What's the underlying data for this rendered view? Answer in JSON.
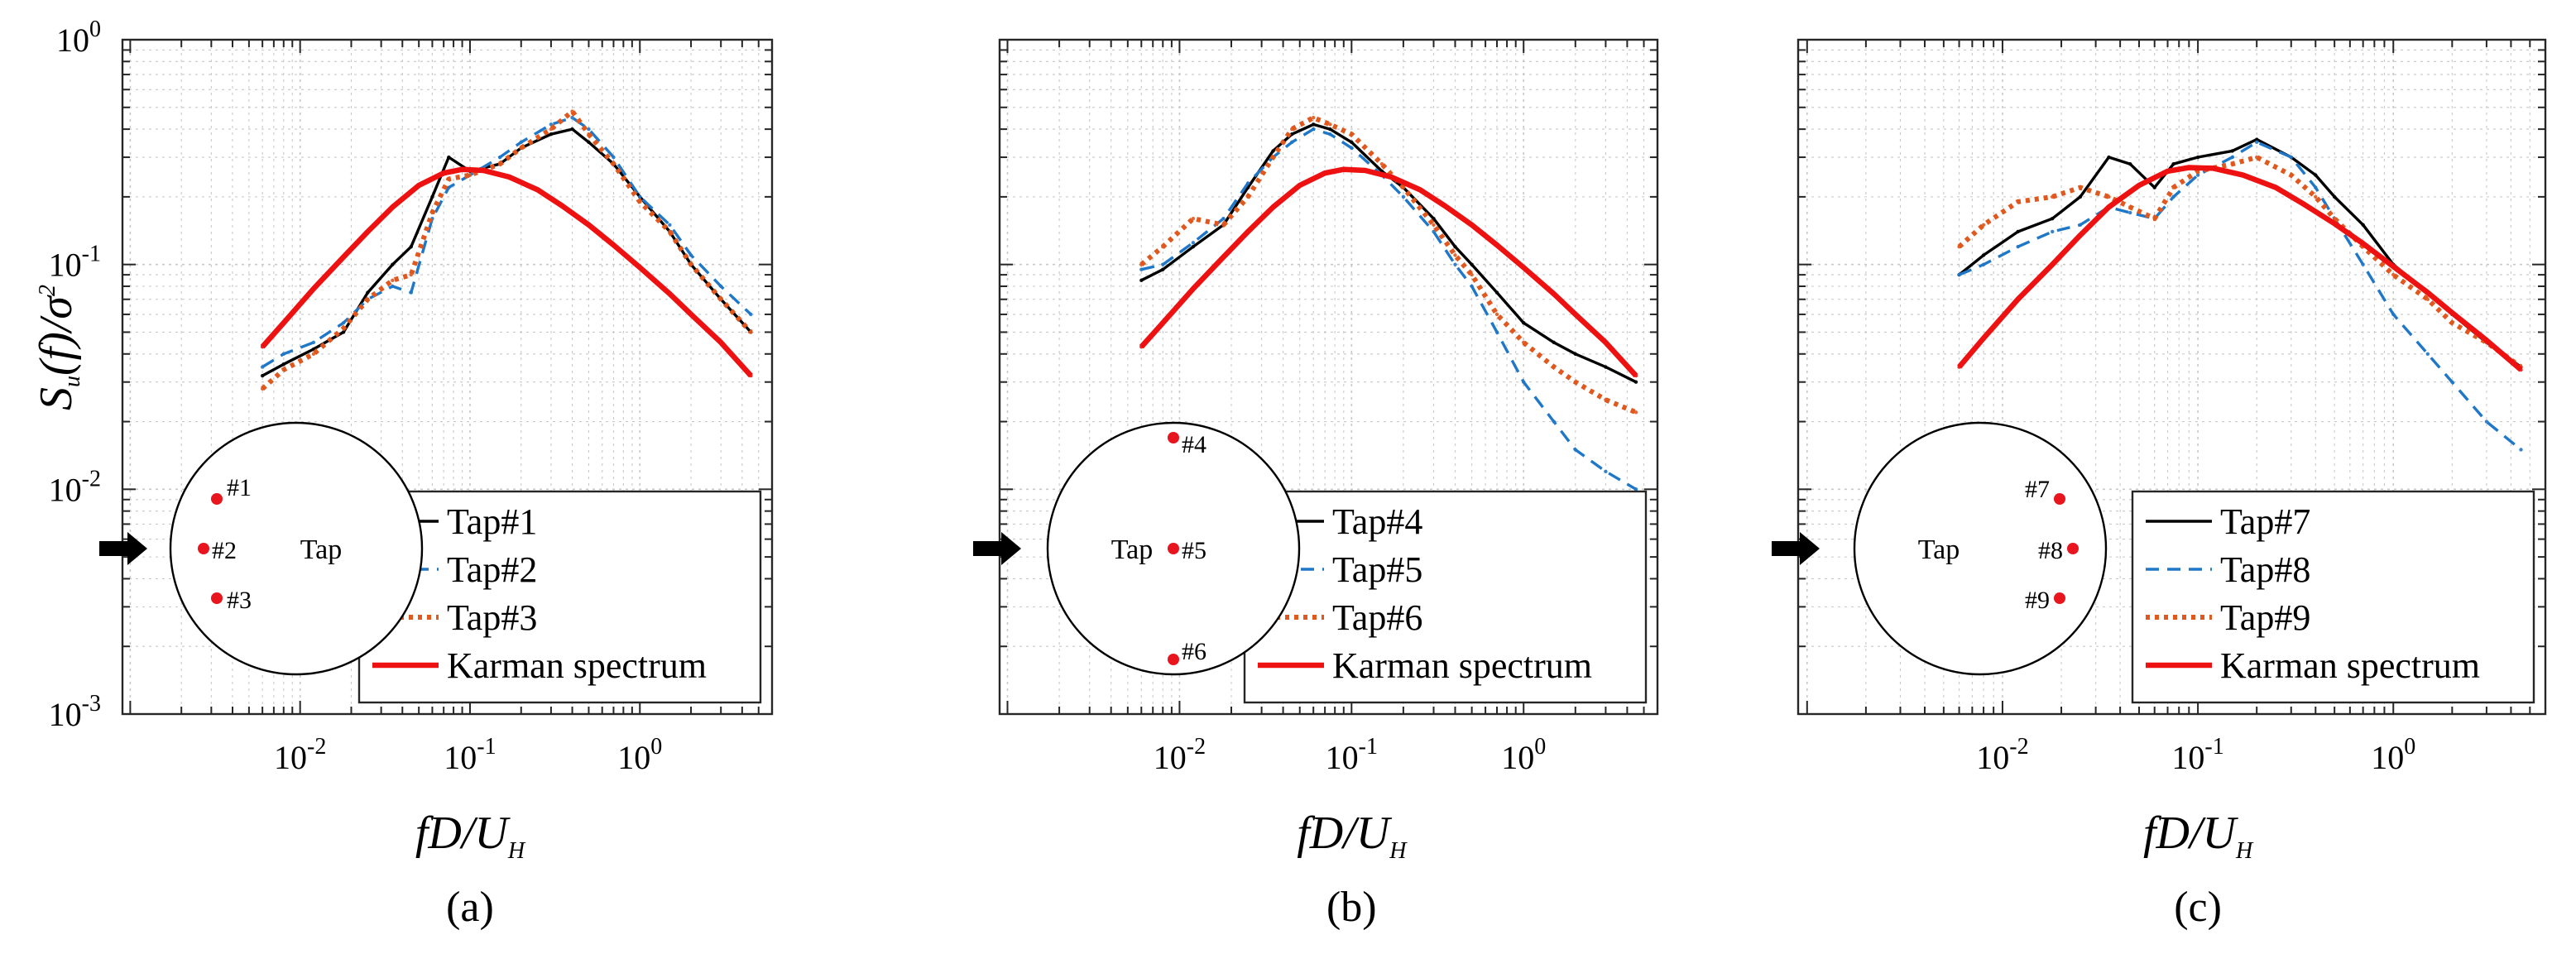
{
  "figure": {
    "y_label": {
      "main": "S",
      "sub": "u",
      "rest": "(f)/σ",
      "sup": "2"
    },
    "x_label": {
      "main": "fD/U",
      "sub": "H"
    },
    "y_ticks": [
      {
        "value": 0.001,
        "base": "10",
        "exp": "-3"
      },
      {
        "value": 0.01,
        "base": "10",
        "exp": "-2"
      },
      {
        "value": 0.1,
        "base": "10",
        "exp": "-1"
      },
      {
        "value": 1,
        "base": "10",
        "exp": "0"
      }
    ],
    "x_ticks": [
      {
        "value": 0.01,
        "base": "10",
        "exp": "-2"
      },
      {
        "value": 0.1,
        "base": "10",
        "exp": "-1"
      },
      {
        "value": 1,
        "base": "10",
        "exp": "0"
      }
    ],
    "inset_word": "Tap",
    "colors": {
      "tap_a": "#000000",
      "tap_b": "#1f77c8",
      "tap_c": "#e0581d",
      "karman": "#ee1111",
      "marker": "#e8141e"
    }
  },
  "chart_data": [
    {
      "type": "line",
      "caption": "(a)",
      "x_scale": "log",
      "y_scale": "log",
      "xlim": [
        0.0009,
        6
      ],
      "ylim": [
        0.001,
        1
      ],
      "xlabel": "fD/U_H",
      "ylabel": "Su(f)/σ^2",
      "grid": true,
      "legend_position": "bottom-right",
      "series": [
        {
          "name": "Tap#1",
          "style": "solid",
          "x": [
            0.006,
            0.008,
            0.012,
            0.018,
            0.025,
            0.035,
            0.045,
            0.06,
            0.075,
            0.1,
            0.15,
            0.2,
            0.3,
            0.4,
            0.5,
            0.7,
            1.0,
            1.5,
            2.0,
            3.0,
            4.5
          ],
          "y": [
            0.032,
            0.036,
            0.042,
            0.05,
            0.075,
            0.1,
            0.12,
            0.2,
            0.3,
            0.26,
            0.28,
            0.33,
            0.38,
            0.4,
            0.35,
            0.28,
            0.2,
            0.14,
            0.1,
            0.07,
            0.05
          ]
        },
        {
          "name": "Tap#2",
          "style": "dashed",
          "x": [
            0.006,
            0.008,
            0.012,
            0.018,
            0.025,
            0.035,
            0.045,
            0.06,
            0.075,
            0.1,
            0.15,
            0.2,
            0.3,
            0.4,
            0.5,
            0.7,
            1.0,
            1.5,
            2.0,
            3.0,
            4.5
          ],
          "y": [
            0.035,
            0.04,
            0.045,
            0.055,
            0.07,
            0.08,
            0.075,
            0.16,
            0.22,
            0.25,
            0.3,
            0.35,
            0.42,
            0.45,
            0.4,
            0.3,
            0.2,
            0.15,
            0.11,
            0.08,
            0.06
          ]
        },
        {
          "name": "Tap#3",
          "style": "dotted",
          "x": [
            0.006,
            0.008,
            0.012,
            0.018,
            0.025,
            0.035,
            0.045,
            0.06,
            0.075,
            0.1,
            0.15,
            0.2,
            0.3,
            0.4,
            0.5,
            0.7,
            1.0,
            1.5,
            2.0,
            3.0,
            4.5
          ],
          "y": [
            0.028,
            0.034,
            0.04,
            0.052,
            0.07,
            0.085,
            0.09,
            0.17,
            0.24,
            0.25,
            0.28,
            0.33,
            0.4,
            0.48,
            0.38,
            0.28,
            0.19,
            0.14,
            0.1,
            0.07,
            0.05
          ]
        },
        {
          "name": "Karman spectrum",
          "style": "thick",
          "x": [
            0.006,
            0.008,
            0.012,
            0.018,
            0.025,
            0.035,
            0.05,
            0.07,
            0.09,
            0.12,
            0.17,
            0.25,
            0.35,
            0.5,
            0.7,
            1.0,
            1.5,
            2.0,
            3.0,
            4.5
          ],
          "y": [
            0.043,
            0.055,
            0.078,
            0.108,
            0.14,
            0.18,
            0.225,
            0.255,
            0.265,
            0.262,
            0.245,
            0.215,
            0.182,
            0.15,
            0.122,
            0.097,
            0.074,
            0.06,
            0.045,
            0.032
          ]
        }
      ],
      "legend": [
        "Tap#1",
        "Tap#2",
        "Tap#3",
        "Karman spectrum"
      ],
      "inset": {
        "taps": [
          {
            "label": "#1",
            "pos": "left-upper"
          },
          {
            "label": "#2",
            "pos": "left-mid"
          },
          {
            "label": "#3",
            "pos": "left-lower"
          }
        ]
      }
    },
    {
      "type": "line",
      "caption": "(b)",
      "x_scale": "log",
      "y_scale": "log",
      "xlim": [
        0.0009,
        6
      ],
      "ylim": [
        0.001,
        1
      ],
      "xlabel": "fD/U_H",
      "ylabel": "Su(f)/σ^2",
      "grid": true,
      "legend_position": "bottom-right",
      "series": [
        {
          "name": "Tap#4",
          "style": "solid",
          "x": [
            0.006,
            0.008,
            0.012,
            0.018,
            0.025,
            0.035,
            0.045,
            0.06,
            0.075,
            0.1,
            0.15,
            0.2,
            0.3,
            0.4,
            0.5,
            0.7,
            1.0,
            1.5,
            2.0,
            3.0,
            4.5
          ],
          "y": [
            0.085,
            0.095,
            0.12,
            0.15,
            0.22,
            0.32,
            0.38,
            0.42,
            0.4,
            0.35,
            0.26,
            0.22,
            0.16,
            0.12,
            0.1,
            0.075,
            0.055,
            0.045,
            0.04,
            0.035,
            0.03
          ]
        },
        {
          "name": "Tap#5",
          "style": "dashed",
          "x": [
            0.006,
            0.008,
            0.012,
            0.018,
            0.025,
            0.035,
            0.045,
            0.06,
            0.075,
            0.1,
            0.15,
            0.2,
            0.3,
            0.4,
            0.5,
            0.7,
            1.0,
            1.5,
            2.0,
            3.0,
            4.5
          ],
          "y": [
            0.095,
            0.1,
            0.125,
            0.16,
            0.23,
            0.3,
            0.35,
            0.4,
            0.38,
            0.33,
            0.25,
            0.2,
            0.14,
            0.1,
            0.08,
            0.05,
            0.03,
            0.02,
            0.015,
            0.012,
            0.01
          ]
        },
        {
          "name": "Tap#6",
          "style": "dotted",
          "x": [
            0.006,
            0.008,
            0.012,
            0.018,
            0.025,
            0.035,
            0.045,
            0.06,
            0.075,
            0.1,
            0.15,
            0.2,
            0.3,
            0.4,
            0.5,
            0.7,
            1.0,
            1.5,
            2.0,
            3.0,
            4.5
          ],
          "y": [
            0.1,
            0.12,
            0.16,
            0.15,
            0.2,
            0.3,
            0.4,
            0.45,
            0.42,
            0.38,
            0.28,
            0.22,
            0.15,
            0.11,
            0.09,
            0.06,
            0.045,
            0.035,
            0.03,
            0.025,
            0.022
          ]
        },
        {
          "name": "Karman spectrum",
          "style": "thick",
          "x": [
            0.006,
            0.008,
            0.012,
            0.018,
            0.025,
            0.035,
            0.05,
            0.07,
            0.09,
            0.12,
            0.17,
            0.25,
            0.35,
            0.5,
            0.7,
            1.0,
            1.5,
            2.0,
            3.0,
            4.5
          ],
          "y": [
            0.043,
            0.055,
            0.078,
            0.108,
            0.14,
            0.18,
            0.225,
            0.255,
            0.265,
            0.262,
            0.245,
            0.215,
            0.182,
            0.15,
            0.122,
            0.097,
            0.074,
            0.06,
            0.045,
            0.032
          ]
        }
      ],
      "legend": [
        "Tap#4",
        "Tap#5",
        "Tap#6",
        "Karman spectrum"
      ],
      "inset": {
        "taps": [
          {
            "label": "#4",
            "pos": "top"
          },
          {
            "label": "#5",
            "pos": "center"
          },
          {
            "label": "#6",
            "pos": "bottom"
          }
        ]
      }
    },
    {
      "type": "line",
      "caption": "(c)",
      "x_scale": "log",
      "y_scale": "log",
      "xlim": [
        0.0009,
        6
      ],
      "ylim": [
        0.001,
        1
      ],
      "xlabel": "fD/U_H",
      "ylabel": "Su(f)/σ^2",
      "grid": true,
      "legend_position": "bottom-right",
      "series": [
        {
          "name": "Tap#7",
          "style": "solid",
          "x": [
            0.006,
            0.008,
            0.012,
            0.018,
            0.025,
            0.035,
            0.045,
            0.06,
            0.075,
            0.1,
            0.15,
            0.2,
            0.3,
            0.4,
            0.5,
            0.7,
            1.0,
            1.5,
            2.0,
            3.0,
            4.5
          ],
          "y": [
            0.09,
            0.11,
            0.14,
            0.16,
            0.2,
            0.3,
            0.28,
            0.22,
            0.28,
            0.3,
            0.32,
            0.36,
            0.3,
            0.25,
            0.2,
            0.15,
            0.1,
            0.075,
            0.06,
            0.045,
            0.035
          ]
        },
        {
          "name": "Tap#8",
          "style": "dashed",
          "x": [
            0.006,
            0.008,
            0.012,
            0.018,
            0.025,
            0.035,
            0.045,
            0.06,
            0.075,
            0.1,
            0.15,
            0.2,
            0.3,
            0.4,
            0.5,
            0.7,
            1.0,
            1.5,
            2.0,
            3.0,
            4.5
          ],
          "y": [
            0.09,
            0.1,
            0.12,
            0.14,
            0.15,
            0.18,
            0.17,
            0.16,
            0.2,
            0.25,
            0.3,
            0.35,
            0.3,
            0.22,
            0.16,
            0.1,
            0.06,
            0.04,
            0.03,
            0.02,
            0.015
          ]
        },
        {
          "name": "Tap#9",
          "style": "dotted",
          "x": [
            0.006,
            0.008,
            0.012,
            0.018,
            0.025,
            0.035,
            0.045,
            0.06,
            0.075,
            0.1,
            0.15,
            0.2,
            0.3,
            0.4,
            0.5,
            0.7,
            1.0,
            1.5,
            2.0,
            3.0,
            4.5
          ],
          "y": [
            0.12,
            0.15,
            0.19,
            0.2,
            0.22,
            0.2,
            0.18,
            0.16,
            0.22,
            0.26,
            0.28,
            0.3,
            0.25,
            0.2,
            0.16,
            0.12,
            0.09,
            0.07,
            0.055,
            0.045,
            0.035
          ]
        },
        {
          "name": "Karman spectrum",
          "style": "thick",
          "x": [
            0.006,
            0.008,
            0.012,
            0.018,
            0.025,
            0.035,
            0.05,
            0.07,
            0.09,
            0.12,
            0.17,
            0.25,
            0.35,
            0.5,
            0.7,
            1.0,
            1.5,
            2.0,
            3.0,
            4.5
          ],
          "y": [
            0.035,
            0.047,
            0.07,
            0.1,
            0.135,
            0.18,
            0.225,
            0.26,
            0.27,
            0.268,
            0.25,
            0.22,
            0.185,
            0.152,
            0.124,
            0.098,
            0.075,
            0.061,
            0.046,
            0.034
          ]
        }
      ],
      "legend": [
        "Tap#7",
        "Tap#8",
        "Tap#9",
        "Karman spectrum"
      ],
      "inset": {
        "taps": [
          {
            "label": "#7",
            "pos": "right-upper"
          },
          {
            "label": "#8",
            "pos": "right-mid"
          },
          {
            "label": "#9",
            "pos": "right-lower"
          }
        ]
      }
    }
  ]
}
